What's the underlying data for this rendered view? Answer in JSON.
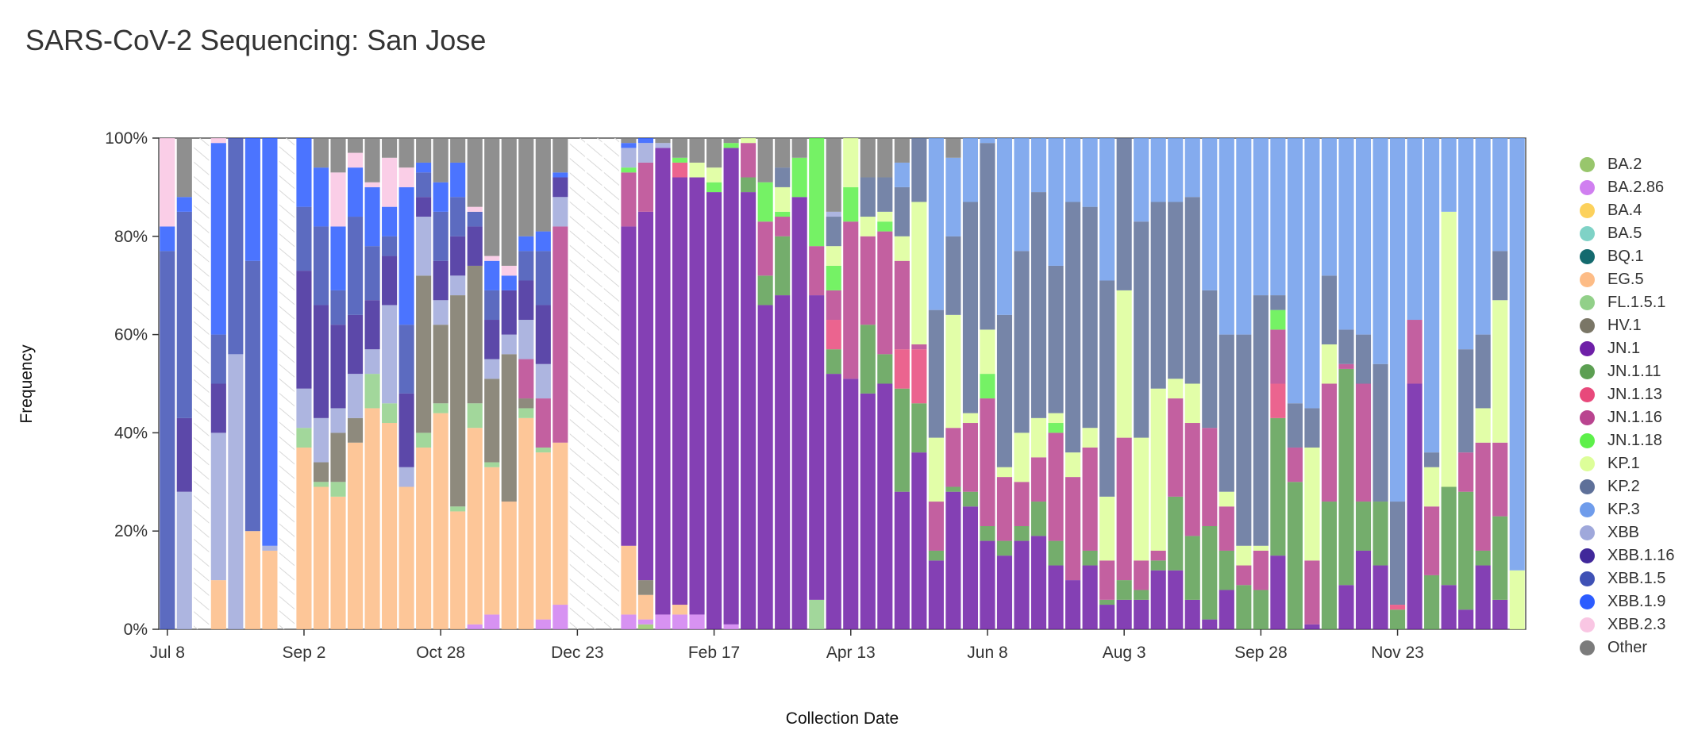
{
  "title": "SARS-CoV-2 Sequencing: San Jose",
  "chart_data": {
    "type": "bar",
    "stacked": true,
    "title": "SARS-CoV-2 Sequencing: San Jose",
    "xlabel": "Collection Date",
    "ylabel": "Frequency",
    "ylim": [
      0,
      100
    ],
    "y_ticks": [
      "0%",
      "20%",
      "40%",
      "60%",
      "80%",
      "100%"
    ],
    "x_ticks": [
      {
        "label": "Jul 8",
        "week": 0
      },
      {
        "label": "Sep 2",
        "week": 8
      },
      {
        "label": "Oct 28",
        "week": 16
      },
      {
        "label": "Dec 23",
        "week": 24
      },
      {
        "label": "Feb 17",
        "week": 32
      },
      {
        "label": "Apr 13",
        "week": 40
      },
      {
        "label": "Jun 8",
        "week": 48
      },
      {
        "label": "Aug 3",
        "week": 56
      },
      {
        "label": "Sep 28",
        "week": 64
      },
      {
        "label": "Nov 23",
        "week": 72
      }
    ],
    "lineage_order": [
      "BA.2",
      "BA.2.86",
      "BA.4",
      "BA.5",
      "BQ.1",
      "EG.5",
      "FL.1.5.1",
      "HV.1",
      "JN.1",
      "JN.1.11",
      "JN.1.13",
      "JN.1.16",
      "JN.1.18",
      "KP.1",
      "KP.2",
      "KP.3",
      "XBB",
      "XBB.1.16",
      "XBB.1.5",
      "XBB.1.9",
      "XBB.2.3",
      "Other"
    ],
    "legend": [
      {
        "name": "BA.2",
        "color": "#98c66c"
      },
      {
        "name": "BA.2.86",
        "color": "#d07ff0"
      },
      {
        "name": "BA.4",
        "color": "#fcd15c"
      },
      {
        "name": "BA.5",
        "color": "#7fd2c6"
      },
      {
        "name": "BQ.1",
        "color": "#146a6e"
      },
      {
        "name": "EG.5",
        "color": "#fdbc86"
      },
      {
        "name": "FL.1.5.1",
        "color": "#92d089"
      },
      {
        "name": "HV.1",
        "color": "#7a7666"
      },
      {
        "name": "JN.1",
        "color": "#6e1fa7"
      },
      {
        "name": "JN.1.11",
        "color": "#5c9f52"
      },
      {
        "name": "JN.1.13",
        "color": "#e8497b"
      },
      {
        "name": "JN.1.16",
        "color": "#b9448f"
      },
      {
        "name": "JN.1.18",
        "color": "#5df04a"
      },
      {
        "name": "KP.1",
        "color": "#ddfe99"
      },
      {
        "name": "KP.2",
        "color": "#5e7099"
      },
      {
        "name": "KP.3",
        "color": "#6f9ceb"
      },
      {
        "name": "XBB",
        "color": "#9fa8db"
      },
      {
        "name": "XBB.1.16",
        "color": "#40289a"
      },
      {
        "name": "XBB.1.5",
        "color": "#3f51b5"
      },
      {
        "name": "XBB.1.9",
        "color": "#2c5cff"
      },
      {
        "name": "XBB.2.3",
        "color": "#f9c6e3"
      },
      {
        "name": "Other",
        "color": "#7b7b7b"
      }
    ],
    "weeks": [
      {
        "s": {
          "XBB.1.5": 77,
          "XBB.1.9": 5,
          "XBB.2.3": 18
        }
      },
      {
        "s": {
          "XBB": 28,
          "XBB.1.16": 15,
          "XBB.1.5": 42,
          "XBB.1.9": 3,
          "Other": 12
        }
      },
      null,
      {
        "s": {
          "EG.5": 10,
          "XBB": 30,
          "XBB.1.16": 10,
          "XBB.1.5": 10,
          "XBB.1.9": 39,
          "XBB.2.3": 1
        }
      },
      {
        "s": {
          "XBB": 56,
          "XBB.1.5": 44
        }
      },
      {
        "s": {
          "EG.5": 20,
          "XBB.1.5": 55,
          "XBB.1.9": 25
        }
      },
      {
        "s": {
          "EG.5": 16,
          "XBB": 1,
          "XBB.1.9": 83
        }
      },
      null,
      {
        "s": {
          "FL.1.5.1": 4,
          "EG.5": 37,
          "XBB": 8,
          "XBB.1.16": 24,
          "XBB.1.5": 13,
          "XBB.1.9": 14
        }
      },
      {
        "s": {
          "FL.1.5.1": 1,
          "EG.5": 29,
          "HV.1": 4,
          "XBB": 9,
          "XBB.1.16": 23,
          "XBB.1.5": 16,
          "XBB.1.9": 12,
          "Other": 6
        }
      },
      {
        "s": {
          "FL.1.5.1": 3,
          "EG.5": 27,
          "HV.1": 10,
          "XBB": 5,
          "XBB.1.16": 17,
          "XBB.1.5": 7,
          "XBB.1.9": 13,
          "XBB.2.3": 11,
          "Other": 7
        }
      },
      {
        "s": {
          "EG.5": 38,
          "HV.1": 5,
          "XBB": 9,
          "XBB.1.16": 12,
          "XBB.1.5": 20,
          "XBB.1.9": 10,
          "XBB.2.3": 3,
          "Other": 3
        }
      },
      {
        "s": {
          "EG.5": 45,
          "FL.1.5.1": 7,
          "XBB": 5,
          "XBB.1.16": 10,
          "XBB.1.5": 11,
          "XBB.1.9": 12,
          "XBB.2.3": 1,
          "Other": 9
        }
      },
      {
        "s": {
          "EG.5": 42,
          "FL.1.5.1": 4,
          "XBB": 20,
          "XBB.1.16": 10,
          "XBB.1.5": 4,
          "XBB.1.9": 6,
          "XBB.2.3": 10,
          "Other": 4
        }
      },
      {
        "s": {
          "EG.5": 29,
          "XBB": 4,
          "XBB.1.16": 15,
          "XBB.1.5": 14,
          "XBB.1.9": 28,
          "XBB.2.3": 4,
          "Other": 6
        }
      },
      {
        "s": {
          "FL.1.5.1": 3,
          "EG.5": 37,
          "HV.1": 32,
          "XBB": 12,
          "XBB.1.16": 4,
          "XBB.1.5": 5,
          "XBB.1.9": 2,
          "Other": 5
        }
      },
      {
        "s": {
          "FL.1.5.1": 2,
          "EG.5": 44,
          "HV.1": 16,
          "XBB": 5,
          "XBB.1.16": 8,
          "XBB.1.5": 10,
          "XBB.1.9": 6,
          "Other": 9
        }
      },
      {
        "s": {
          "FL.1.5.1": 1,
          "EG.5": 24,
          "HV.1": 43,
          "XBB": 4,
          "XBB.1.16": 8,
          "XBB.1.5": 8,
          "XBB.1.9": 7,
          "Other": 5
        }
      },
      {
        "s": {
          "BA.2.86": 1,
          "FL.1.5.1": 5,
          "EG.5": 40,
          "HV.1": 28,
          "XBB.1.16": 8,
          "XBB.1.5": 3,
          "XBB.2.3": 1,
          "Other": 14
        }
      },
      {
        "s": {
          "BA.2.86": 3,
          "FL.1.5.1": 1,
          "EG.5": 30,
          "HV.1": 17,
          "XBB": 4,
          "XBB.1.16": 8,
          "XBB.1.5": 6,
          "XBB.1.9": 6,
          "XBB.2.3": 1,
          "Other": 24
        }
      },
      {
        "s": {
          "EG.5": 26,
          "HV.1": 30,
          "XBB": 4,
          "XBB.1.16": 9,
          "XBB.1.9": 3,
          "XBB.2.3": 2,
          "Other": 26
        }
      },
      {
        "s": {
          "FL.1.5.1": 2,
          "EG.5": 43,
          "HV.1": 2,
          "JN.1.16": 8,
          "XBB": 8,
          "XBB.1.16": 8,
          "XBB.1.5": 6,
          "XBB.1.9": 3,
          "Other": 20
        }
      },
      {
        "s": {
          "BA.2.86": 2,
          "FL.1.5.1": 1,
          "EG.5": 34,
          "JN.1.16": 10,
          "XBB": 7,
          "XBB.1.16": 12,
          "XBB.1.5": 11,
          "XBB.1.9": 4,
          "Other": 19
        }
      },
      {
        "s": {
          "BA.2.86": 5,
          "EG.5": 33,
          "XBB.1.16": 4,
          "JN.1.16": 44,
          "XBB": 6,
          "XBB.1.9": 1,
          "Other": 7
        }
      },
      null,
      null,
      null,
      {
        "s": {
          "BA.2.86": 3,
          "EG.5": 14,
          "JN.1": 65,
          "JN.1.16": 11,
          "JN.1.18": 1,
          "XBB": 4,
          "XBB.1.9": 1,
          "Other": 1
        }
      },
      {
        "s": {
          "BA.2": 1,
          "BA.2.86": 1,
          "EG.5": 5,
          "HV.1": 3,
          "JN.1": 75,
          "JN.1.16": 10,
          "XBB": 4,
          "XBB.1.9": 1
        }
      },
      {
        "s": {
          "BA.2.86": 3,
          "JN.1": 95,
          "XBB": 1,
          "Other": 1
        }
      },
      {
        "s": {
          "BA.2.86": 3,
          "EG.5": 2,
          "JN.1": 87,
          "JN.1.13": 3,
          "JN.1.18": 1,
          "Other": 4
        }
      },
      {
        "s": {
          "BA.2.86": 3,
          "JN.1": 89,
          "KP.1": 3,
          "Other": 5
        }
      },
      {
        "s": {
          "JN.1": 89,
          "KP.1": 3,
          "JN.1.18": 2,
          "Other": 6
        }
      },
      {
        "s": {
          "BA.2.86": 1,
          "JN.1": 97,
          "JN.1.18": 1,
          "Other": 1
        }
      },
      {
        "s": {
          "JN.1": 89,
          "JN.1.11": 3,
          "JN.1.16": 7,
          "KP.1": 1
        }
      },
      {
        "s": {
          "JN.1": 66,
          "JN.1.11": 6,
          "JN.1.16": 11,
          "JN.1.18": 8,
          "Other": 9
        }
      },
      {
        "s": {
          "JN.1": 68,
          "JN.1.11": 12,
          "JN.1.16": 4,
          "JN.1.18": 1,
          "KP.1": 5,
          "KP.2": 4,
          "Other": 6
        }
      },
      {
        "s": {
          "JN.1": 88,
          "JN.1.18": 8,
          "Other": 4
        }
      },
      {
        "s": {
          "JN.1": 62,
          "FL.1.5.1": 6,
          "JN.1.16": 10,
          "JN.1.18": 22
        }
      },
      {
        "s": {
          "JN.1": 52,
          "JN.1.11": 5,
          "JN.1.13": 6,
          "JN.1.16": 6,
          "JN.1.18": 5,
          "KP.1": 4,
          "KP.2": 6,
          "XBB": 1,
          "Other": 15
        }
      },
      {
        "s": {
          "JN.1": 51,
          "JN.1.16": 32,
          "JN.1.18": 7,
          "KP.1": 10
        }
      },
      {
        "s": {
          "JN.1": 48,
          "JN.1.11": 14,
          "JN.1.16": 18,
          "KP.1": 4,
          "KP.2": 8,
          "Other": 8
        }
      },
      {
        "s": {
          "JN.1": 50,
          "JN.1.11": 6,
          "JN.1.16": 25,
          "JN.1.18": 2,
          "KP.1": 2,
          "KP.2": 7,
          "Other": 8
        }
      },
      {
        "s": {
          "JN.1": 28,
          "JN.1.11": 21,
          "JN.1.13": 8,
          "JN.1.16": 18,
          "KP.1": 5,
          "KP.2": 10,
          "KP.3": 5,
          "Other": 5
        }
      },
      {
        "s": {
          "JN.1": 36,
          "JN.1.11": 10,
          "JN.1.13": 11,
          "JN.1.16": 1,
          "KP.1": 29,
          "KP.2": 13
        }
      },
      {
        "s": {
          "JN.1": 14,
          "JN.1.11": 2,
          "JN.1.16": 10,
          "KP.1": 13,
          "KP.2": 26,
          "KP.3": 35
        }
      },
      {
        "s": {
          "JN.1": 28,
          "JN.1.11": 1,
          "JN.1.16": 12,
          "KP.1": 23,
          "KP.2": 16,
          "KP.3": 16,
          "Other": 4
        }
      },
      {
        "s": {
          "JN.1": 25,
          "JN.1.11": 3,
          "JN.1.16": 14,
          "KP.1": 2,
          "KP.2": 43,
          "KP.3": 13
        }
      },
      {
        "s": {
          "JN.1": 18,
          "JN.1.11": 3,
          "JN.1.16": 26,
          "JN.1.18": 5,
          "KP.1": 9,
          "KP.2": 38,
          "KP.3": 1
        }
      },
      {
        "s": {
          "JN.1": 15,
          "JN.1.11": 3,
          "JN.1.16": 13,
          "KP.1": 2,
          "KP.2": 31,
          "KP.3": 36
        }
      },
      {
        "s": {
          "JN.1": 18,
          "JN.1.11": 3,
          "JN.1.16": 9,
          "KP.1": 10,
          "KP.2": 37,
          "KP.3": 23
        }
      },
      {
        "s": {
          "JN.1": 19,
          "JN.1.11": 7,
          "JN.1.16": 9,
          "KP.1": 8,
          "KP.2": 46,
          "KP.3": 11
        }
      },
      {
        "s": {
          "JN.1": 13,
          "JN.1.11": 5,
          "JN.1.16": 22,
          "JN.1.18": 2,
          "KP.1": 2,
          "KP.2": 30,
          "KP.3": 26
        }
      },
      {
        "s": {
          "JN.1": 10,
          "JN.1.16": 21,
          "KP.1": 5,
          "KP.2": 51,
          "KP.3": 13
        }
      },
      {
        "s": {
          "JN.1": 13,
          "JN.1.11": 3,
          "JN.1.16": 21,
          "KP.1": 4,
          "KP.2": 45,
          "KP.3": 14
        }
      },
      {
        "s": {
          "JN.1": 5,
          "JN.1.11": 1,
          "JN.1.16": 8,
          "KP.1": 13,
          "KP.2": 44,
          "KP.3": 29
        }
      },
      {
        "s": {
          "JN.1": 6,
          "JN.1.11": 4,
          "JN.1.16": 29,
          "KP.1": 30,
          "KP.2": 31
        }
      },
      {
        "s": {
          "JN.1": 6,
          "JN.1.11": 2,
          "JN.1.16": 6,
          "KP.1": 25,
          "KP.2": 44,
          "KP.3": 17
        }
      },
      {
        "s": {
          "JN.1": 12,
          "JN.1.11": 2,
          "JN.1.16": 2,
          "KP.1": 33,
          "KP.2": 38,
          "KP.3": 13
        }
      },
      {
        "s": {
          "JN.1": 12,
          "JN.1.11": 15,
          "JN.1.16": 20,
          "KP.1": 4,
          "KP.2": 36,
          "KP.3": 13
        }
      },
      {
        "s": {
          "JN.1": 6,
          "JN.1.11": 13,
          "JN.1.16": 23,
          "KP.1": 8,
          "KP.2": 38,
          "KP.3": 12
        }
      },
      {
        "s": {
          "JN.1": 2,
          "JN.1.11": 19,
          "JN.1.16": 20,
          "KP.2": 28,
          "KP.3": 31
        }
      },
      {
        "s": {
          "JN.1": 8,
          "JN.1.11": 8,
          "JN.1.16": 9,
          "KP.1": 3,
          "KP.2": 32,
          "KP.3": 40
        }
      },
      {
        "s": {
          "JN.1.11": 9,
          "JN.1.16": 4,
          "KP.1": 4,
          "KP.2": 43,
          "KP.3": 40
        }
      },
      {
        "s": {
          "JN.1.11": 8,
          "JN.1.16": 8,
          "KP.1": 1,
          "KP.2": 51,
          "KP.3": 32
        }
      },
      {
        "s": {
          "JN.1": 15,
          "JN.1.11": 28,
          "JN.1.13": 7,
          "JN.1.16": 11,
          "JN.1.18": 4,
          "KP.2": 3,
          "KP.3": 32
        }
      },
      {
        "s": {
          "JN.1.11": 30,
          "JN.1.16": 7,
          "KP.2": 9,
          "KP.3": 54
        }
      },
      {
        "s": {
          "JN.1": 1,
          "JN.1.16": 13,
          "KP.1": 23,
          "KP.2": 8,
          "KP.3": 55
        }
      },
      {
        "s": {
          "JN.1.11": 26,
          "JN.1.16": 24,
          "KP.1": 8,
          "KP.2": 14,
          "KP.3": 28
        }
      },
      {
        "s": {
          "JN.1": 9,
          "JN.1.11": 44,
          "JN.1.16": 1,
          "KP.2": 7,
          "KP.3": 39
        }
      },
      {
        "s": {
          "JN.1": 16,
          "JN.1.11": 10,
          "JN.1.16": 24,
          "KP.2": 10,
          "KP.3": 40
        }
      },
      {
        "s": {
          "JN.1": 13,
          "JN.1.11": 13,
          "KP.2": 28,
          "KP.3": 46
        }
      },
      {
        "s": {
          "JN.1.11": 4,
          "JN.1.13": 1,
          "KP.2": 21,
          "KP.3": 74
        }
      },
      {
        "s": {
          "JN.1": 50,
          "JN.1.16": 13,
          "KP.3": 37
        }
      },
      {
        "s": {
          "JN.1.11": 11,
          "JN.1.16": 14,
          "KP.1": 8,
          "KP.2": 3,
          "KP.3": 64
        }
      },
      {
        "s": {
          "JN.1": 9,
          "JN.1.11": 20,
          "KP.1": 56,
          "KP.3": 15
        }
      },
      {
        "s": {
          "JN.1": 4,
          "JN.1.11": 24,
          "JN.1.16": 8,
          "KP.2": 21,
          "KP.3": 43
        }
      },
      {
        "s": {
          "JN.1": 13,
          "JN.1.11": 3,
          "JN.1.16": 22,
          "KP.1": 7,
          "KP.2": 15,
          "KP.3": 40
        }
      },
      {
        "s": {
          "JN.1": 6,
          "JN.1.11": 17,
          "JN.1.16": 15,
          "KP.1": 29,
          "KP.2": 10,
          "KP.3": 23
        }
      },
      {
        "s": {
          "KP.1": 12,
          "KP.3": 88
        }
      }
    ]
  }
}
